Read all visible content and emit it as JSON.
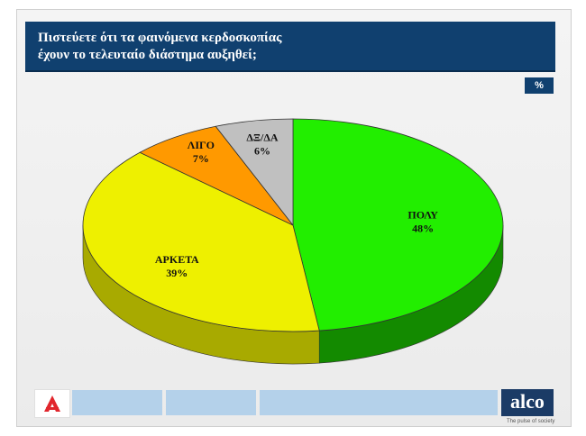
{
  "header": {
    "title_line1": "Πιστεύετε ότι τα φαινόμενα κερδοσκοπίας",
    "title_line2": "έχουν το τελευταίο διάστημα αυξηθεί;"
  },
  "unit_badge": "%",
  "chart_data": {
    "type": "pie",
    "title": "Πιστεύετε ότι τα φαινόμενα κερδοσκοπίας έχουν το τελευταίο διάστημα αυξηθεί;",
    "categories": [
      "ΠΟΛΥ",
      "ΑΡΚΕΤΑ",
      "ΛΙΓΟ",
      "ΔΞ/ΔΑ"
    ],
    "values": [
      48,
      39,
      7,
      6
    ],
    "value_labels": [
      "48%",
      "39%",
      "7%",
      "6%"
    ],
    "colors": [
      "#22ee00",
      "#eef000",
      "#ff9900",
      "#c0c0c0"
    ],
    "side_colors": [
      "#138a00",
      "#a8aa00",
      "#b86e00",
      "#8c8c8c"
    ],
    "style": "3d"
  },
  "footer": {
    "logo_text": "alco",
    "tagline": "The pulse of society",
    "colors": {
      "bar": "#b4d1ea",
      "logo_bg": "#1b3b66",
      "brand_red": "#e1262d"
    }
  }
}
